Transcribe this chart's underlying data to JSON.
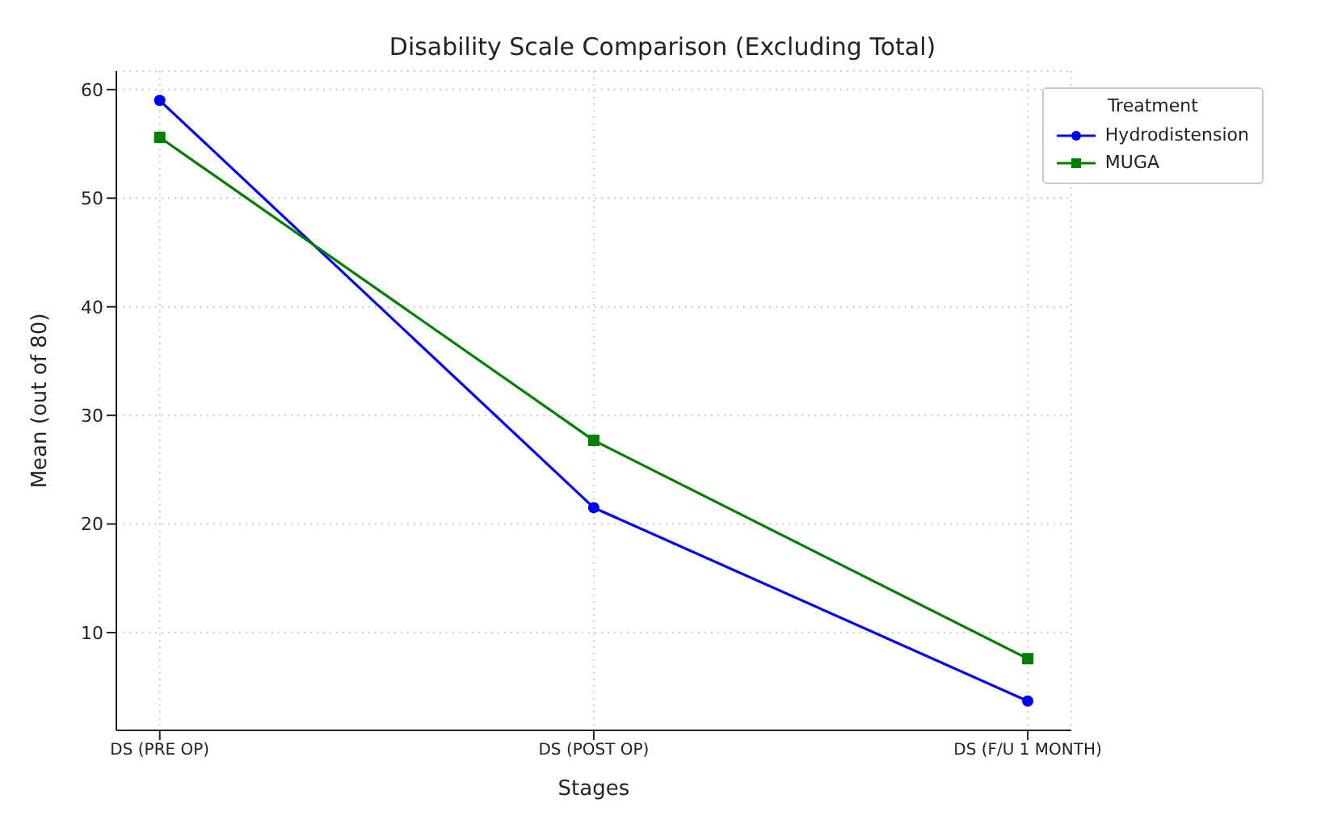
{
  "chart_data": {
    "type": "line",
    "title": "Disability Scale Comparison (Excluding Total)",
    "xlabel": "Stages",
    "ylabel": "Mean (out of 80)",
    "legend_title": "Treatment",
    "categories": [
      "DS (PRE OP)",
      "DS (POST OP)",
      "DS (F/U 1 MONTH)"
    ],
    "series": [
      {
        "name": "Hydrodistension",
        "color": "#0000ff",
        "values": [
          59.0,
          21.5,
          3.7
        ],
        "marker": "circle"
      },
      {
        "name": "MUGA",
        "color": "#008000",
        "values": [
          55.6,
          27.7,
          7.6
        ],
        "marker": "square"
      }
    ],
    "ylim": [
      1,
      61.7
    ],
    "yticks": [
      10,
      20,
      30,
      40,
      50,
      60
    ],
    "grid": true,
    "legend": "top right",
    "line_style": "solid"
  }
}
